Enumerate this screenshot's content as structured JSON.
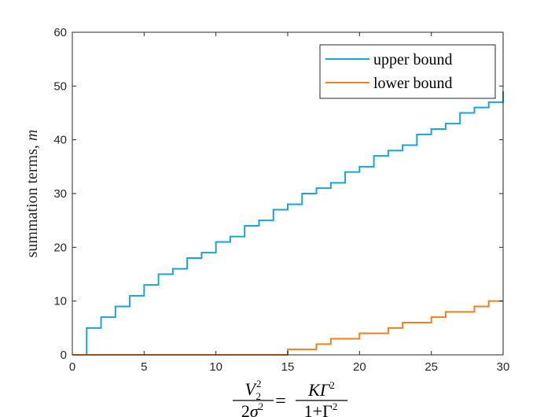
{
  "chart_data": {
    "type": "line",
    "step": true,
    "xlim": [
      0,
      30
    ],
    "ylim": [
      0,
      60
    ],
    "xticks": [
      0,
      5,
      10,
      15,
      20,
      25,
      30
    ],
    "yticks": [
      0,
      10,
      20,
      30,
      40,
      50,
      60
    ],
    "ylabel_text": "summation terms, ",
    "ylabel_var": "m",
    "xlabel": {
      "lhs_num_var": "V",
      "lhs_num_sup": "2",
      "lhs_num_sub": "2",
      "lhs_den": "2",
      "lhs_den_var": "σ",
      "lhs_den_sup": "2",
      "equals": "=",
      "rhs_num": "KΓ",
      "rhs_num_sup": "2",
      "rhs_den": "1+Γ",
      "rhs_den_sup": "2"
    },
    "legend_position": "top-right",
    "series": [
      {
        "name": "upper bound",
        "color": "#1aa3d9",
        "x": [
          0,
          1,
          2,
          3,
          4,
          5,
          6,
          7,
          8,
          9,
          10,
          11,
          12,
          13,
          14,
          15,
          16,
          17,
          18,
          19,
          20,
          21,
          22,
          23,
          24,
          25,
          26,
          27,
          28,
          29,
          30
        ],
        "values": [
          0,
          5,
          7,
          9,
          11,
          13,
          15,
          16,
          18,
          19,
          21,
          22,
          24,
          25,
          27,
          28,
          30,
          31,
          32,
          34,
          35,
          37,
          38,
          39,
          41,
          42,
          43,
          45,
          46,
          47,
          49
        ]
      },
      {
        "name": "lower bound",
        "color": "#f07f1d",
        "x": [
          0,
          1,
          2,
          3,
          4,
          5,
          6,
          7,
          8,
          9,
          10,
          11,
          12,
          13,
          14,
          15,
          16,
          17,
          18,
          19,
          20,
          21,
          22,
          23,
          24,
          25,
          26,
          27,
          28,
          29,
          30
        ],
        "values": [
          0,
          0,
          0,
          0,
          0,
          0,
          0,
          0,
          0,
          0,
          0,
          0,
          0,
          0,
          0,
          1,
          1,
          2,
          3,
          3,
          4,
          4,
          5,
          6,
          6,
          7,
          8,
          8,
          9,
          10,
          10
        ]
      }
    ]
  }
}
